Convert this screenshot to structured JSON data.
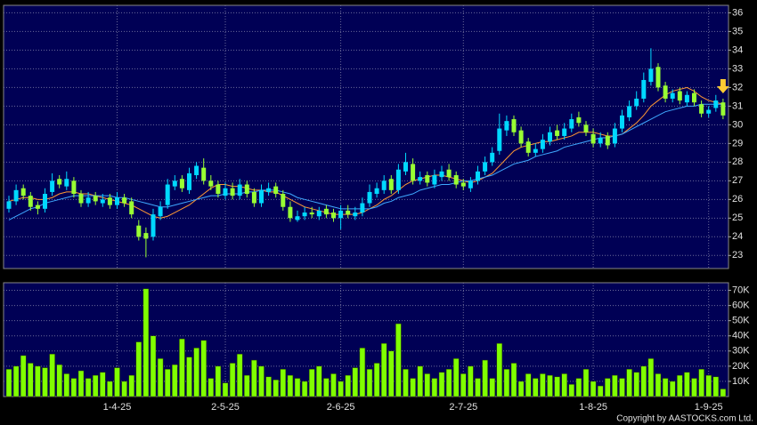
{
  "chart_data": [
    {
      "type": "candlestick",
      "categories": [
        null,
        null,
        null,
        null,
        null,
        null,
        null,
        null,
        null,
        null,
        null,
        null,
        null,
        null,
        null,
        "1-4-25",
        null,
        null,
        null,
        null,
        null,
        null,
        null,
        null,
        null,
        null,
        null,
        null,
        null,
        null,
        "2-5-25",
        null,
        null,
        null,
        null,
        null,
        null,
        null,
        null,
        null,
        null,
        null,
        null,
        null,
        null,
        null,
        "2-6-25",
        null,
        null,
        null,
        null,
        null,
        null,
        null,
        null,
        null,
        null,
        null,
        null,
        null,
        null,
        null,
        null,
        "2-7-25",
        null,
        null,
        null,
        null,
        null,
        null,
        null,
        null,
        null,
        null,
        null,
        null,
        null,
        null,
        null,
        null,
        null,
        "1-8-25",
        null,
        null,
        null,
        null,
        null,
        null,
        null,
        null,
        null,
        null,
        null,
        null,
        null,
        null,
        null,
        "1-9-25",
        null,
        null
      ],
      "open": [
        25.5,
        25.9,
        26.6,
        26.2,
        25.7,
        25.5,
        26.4,
        27.1,
        26.7,
        27.0,
        26.3,
        25.8,
        26.2,
        25.8,
        26.1,
        25.7,
        26.1,
        25.9,
        24.6,
        24.2,
        24.0,
        25.1,
        25.7,
        26.7,
        27.1,
        26.5,
        27.3,
        27.7,
        27.0,
        26.8,
        26.2,
        26.6,
        26.2,
        26.8,
        26.4,
        25.8,
        26.4,
        26.7,
        26.3,
        25.6,
        24.9,
        25.1,
        25.3,
        25.1,
        25.5,
        25.3,
        25.0,
        25.4,
        25.1,
        25.3,
        25.8,
        26.3,
        26.5,
        27.1,
        26.5,
        27.5,
        27.9,
        27.0,
        27.3,
        26.8,
        27.2,
        27.6,
        27.3,
        26.9,
        26.6,
        27.0,
        27.5,
        28.0,
        28.6,
        29.7,
        30.3,
        29.7,
        29.1,
        28.5,
        28.7,
        29.1,
        29.7,
        29.4,
        29.8,
        30.4,
        30.0,
        29.5,
        29.0,
        29.4,
        29.0,
        29.8,
        30.4,
        31.0,
        31.4,
        32.3,
        33.1,
        32.1,
        31.4,
        31.8,
        31.2,
        31.7,
        31.1,
        30.6,
        30.9,
        31.2
      ],
      "high": [
        26.2,
        26.8,
        26.8,
        26.4,
        25.9,
        26.6,
        27.4,
        27.3,
        27.5,
        27.2,
        26.5,
        26.4,
        26.4,
        26.3,
        26.3,
        26.4,
        26.3,
        26.1,
        24.9,
        24.5,
        25.5,
        25.9,
        27.1,
        27.3,
        27.3,
        27.7,
        28.0,
        28.2,
        27.3,
        27.0,
        26.9,
        26.9,
        27.1,
        27.0,
        26.6,
        26.8,
        26.9,
        26.9,
        26.5,
        25.9,
        25.4,
        25.6,
        25.6,
        25.6,
        25.7,
        25.5,
        25.7,
        25.7,
        25.6,
        26.1,
        26.8,
        26.9,
        27.3,
        27.3,
        27.9,
        28.5,
        28.2,
        27.5,
        27.5,
        27.6,
        27.8,
        27.9,
        27.5,
        27.1,
        27.2,
        27.8,
        28.3,
        28.8,
        30.6,
        30.5,
        30.5,
        29.9,
        29.3,
        29.0,
        29.5,
        29.9,
        30.0,
        30.1,
        30.6,
        30.7,
        30.2,
        29.8,
        29.6,
        29.6,
        30.1,
        30.8,
        31.3,
        31.8,
        32.8,
        34.1,
        33.3,
        32.3,
        31.9,
        32.0,
        31.8,
        31.9,
        31.3,
        31.0,
        31.6,
        31.4
      ],
      "low": [
        25.3,
        25.7,
        26.0,
        25.4,
        25.2,
        25.3,
        26.2,
        26.6,
        26.5,
        26.1,
        25.6,
        25.6,
        25.7,
        25.6,
        25.5,
        25.5,
        25.6,
        25.0,
        23.8,
        22.9,
        23.8,
        24.9,
        25.5,
        26.5,
        26.4,
        26.3,
        27.1,
        26.8,
        26.5,
        26.1,
        26.0,
        26.0,
        26.0,
        26.1,
        25.6,
        25.6,
        26.2,
        26.1,
        25.4,
        24.8,
        24.8,
        24.9,
        25.0,
        24.9,
        25.0,
        24.8,
        24.4,
        25.0,
        24.9,
        25.1,
        25.6,
        26.1,
        26.3,
        26.3,
        26.3,
        27.3,
        26.8,
        26.8,
        26.7,
        26.6,
        27.0,
        27.0,
        26.6,
        26.5,
        26.4,
        26.8,
        27.3,
        27.8,
        28.4,
        29.4,
        29.4,
        28.8,
        28.3,
        28.3,
        28.5,
        28.9,
        29.2,
        29.2,
        29.6,
        29.9,
        29.4,
        28.8,
        28.8,
        28.7,
        28.8,
        29.6,
        30.2,
        30.8,
        31.2,
        32.1,
        31.8,
        31.2,
        31.2,
        31.1,
        31.0,
        31.0,
        30.4,
        30.4,
        30.7,
        30.3
      ],
      "close": [
        25.9,
        26.5,
        26.2,
        25.6,
        25.5,
        26.3,
        27.0,
        26.8,
        27.1,
        26.3,
        25.8,
        26.1,
        25.9,
        26.0,
        25.7,
        26.1,
        25.8,
        25.2,
        24.0,
        23.9,
        25.2,
        25.6,
        26.8,
        27.0,
        26.6,
        27.4,
        27.8,
        27.0,
        26.7,
        26.3,
        26.6,
        26.2,
        26.8,
        26.3,
        25.8,
        26.5,
        26.6,
        26.3,
        25.6,
        25.0,
        25.1,
        25.3,
        25.2,
        25.4,
        25.2,
        25.0,
        25.4,
        25.2,
        25.3,
        25.8,
        26.4,
        26.6,
        27.0,
        26.5,
        27.6,
        28.0,
        27.0,
        27.2,
        26.9,
        27.3,
        27.5,
        27.2,
        26.8,
        26.7,
        27.0,
        27.5,
        28.0,
        28.5,
        29.8,
        30.2,
        29.6,
        29.0,
        28.5,
        28.7,
        29.2,
        29.6,
        29.4,
        29.8,
        30.3,
        30.1,
        29.6,
        29.0,
        29.3,
        28.9,
        29.8,
        30.5,
        31.0,
        31.4,
        32.4,
        33.0,
        32.0,
        31.4,
        31.7,
        31.3,
        31.6,
        31.2,
        30.6,
        30.8,
        31.3,
        30.5
      ],
      "up_color": "#00d8ff",
      "down_color": "#99ff33",
      "ma_lines": [
        {
          "color": "#ff9933",
          "values": [
            25.9,
            26.0,
            26.1,
            26.1,
            26.0,
            26.0,
            26.1,
            26.3,
            26.4,
            26.4,
            26.3,
            26.3,
            26.2,
            26.1,
            26.0,
            25.9,
            25.8,
            25.7,
            25.5,
            25.3,
            25.1,
            25.0,
            25.1,
            25.3,
            25.5,
            25.7,
            26.0,
            26.3,
            26.6,
            26.8,
            26.8,
            26.7,
            26.7,
            26.6,
            26.5,
            26.5,
            26.4,
            26.4,
            26.2,
            26.0,
            25.8,
            25.6,
            25.5,
            25.4,
            25.3,
            25.2,
            25.2,
            25.2,
            25.2,
            25.3,
            25.5,
            25.7,
            26.0,
            26.2,
            26.5,
            26.8,
            27.0,
            27.1,
            27.2,
            27.3,
            27.3,
            27.2,
            27.1,
            27.0,
            26.9,
            27.0,
            27.2,
            27.4,
            27.8,
            28.2,
            28.6,
            28.8,
            28.9,
            29.0,
            29.1,
            29.1,
            29.2,
            29.3,
            29.4,
            29.6,
            29.6,
            29.6,
            29.5,
            29.4,
            29.4,
            29.5,
            29.8,
            30.1,
            30.5,
            31.0,
            31.3,
            31.6,
            31.8,
            31.9,
            32.0,
            31.8,
            31.5,
            31.3,
            31.2,
            31.1
          ]
        },
        {
          "color": "#3fa9ff",
          "values": [
            24.9,
            25.1,
            25.3,
            25.5,
            25.6,
            25.8,
            25.9,
            26.0,
            26.1,
            26.2,
            26.2,
            26.2,
            26.2,
            26.2,
            26.2,
            26.1,
            26.1,
            26.0,
            25.9,
            25.8,
            25.7,
            25.6,
            25.6,
            25.7,
            25.8,
            25.9,
            26.0,
            26.1,
            26.2,
            26.2,
            26.3,
            26.3,
            26.3,
            26.4,
            26.4,
            26.5,
            26.5,
            26.5,
            26.4,
            26.3,
            26.1,
            26.0,
            25.9,
            25.8,
            25.7,
            25.6,
            25.5,
            25.5,
            25.5,
            25.5,
            25.5,
            25.6,
            25.8,
            25.9,
            26.1,
            26.2,
            26.3,
            26.5,
            26.6,
            26.7,
            26.8,
            26.8,
            26.9,
            27.0,
            27.0,
            27.1,
            27.2,
            27.3,
            27.5,
            27.7,
            27.9,
            28.0,
            28.1,
            28.3,
            28.4,
            28.5,
            28.6,
            28.8,
            28.9,
            29.0,
            29.1,
            29.2,
            29.3,
            29.3,
            29.4,
            29.5,
            29.7,
            29.9,
            30.1,
            30.3,
            30.5,
            30.7,
            30.8,
            30.9,
            31.0,
            31.0,
            31.1,
            31.1,
            31.1,
            31.1
          ]
        }
      ],
      "ylim": [
        22.3,
        36.4
      ],
      "yticks": [
        23,
        24,
        25,
        26,
        27,
        28,
        29,
        30,
        31,
        32,
        33,
        34,
        35,
        36
      ],
      "grid": true
    },
    {
      "type": "bar",
      "values": [
        18000,
        20000,
        27000,
        22000,
        20000,
        19000,
        28000,
        21000,
        15000,
        12000,
        17000,
        12000,
        14000,
        16000,
        10000,
        19000,
        10000,
        14000,
        36000,
        71000,
        40000,
        25000,
        18000,
        21000,
        38000,
        26000,
        32000,
        37000,
        12000,
        20000,
        9000,
        22000,
        28000,
        14000,
        24000,
        20000,
        13000,
        11000,
        18000,
        14000,
        12000,
        10000,
        18000,
        20000,
        12000,
        15000,
        10000,
        14000,
        19000,
        32000,
        18000,
        22000,
        35000,
        30000,
        48000,
        18000,
        12000,
        20000,
        15000,
        12000,
        16000,
        18000,
        25000,
        15000,
        20000,
        12000,
        24000,
        12000,
        35000,
        18000,
        22000,
        10000,
        15000,
        12000,
        15000,
        14000,
        13000,
        15000,
        8000,
        12000,
        18000,
        10000,
        7000,
        12000,
        14000,
        12000,
        18000,
        16000,
        20000,
        25000,
        15000,
        12000,
        10000,
        14000,
        16000,
        12000,
        18000,
        14000,
        13000,
        5000
      ],
      "color": "#80ff00",
      "ylim": [
        0,
        75000
      ],
      "yticks": [
        {
          "value": 10000,
          "label": "10K"
        },
        {
          "value": 20000,
          "label": "20K"
        },
        {
          "value": 30000,
          "label": "30K"
        },
        {
          "value": 40000,
          "label": "40K"
        },
        {
          "value": 50000,
          "label": "50K"
        },
        {
          "value": 60000,
          "label": "60K"
        },
        {
          "value": 70000,
          "label": "70K"
        }
      ],
      "grid": true
    }
  ],
  "copyright": "Copyright by AASTOCKS.com Ltd."
}
